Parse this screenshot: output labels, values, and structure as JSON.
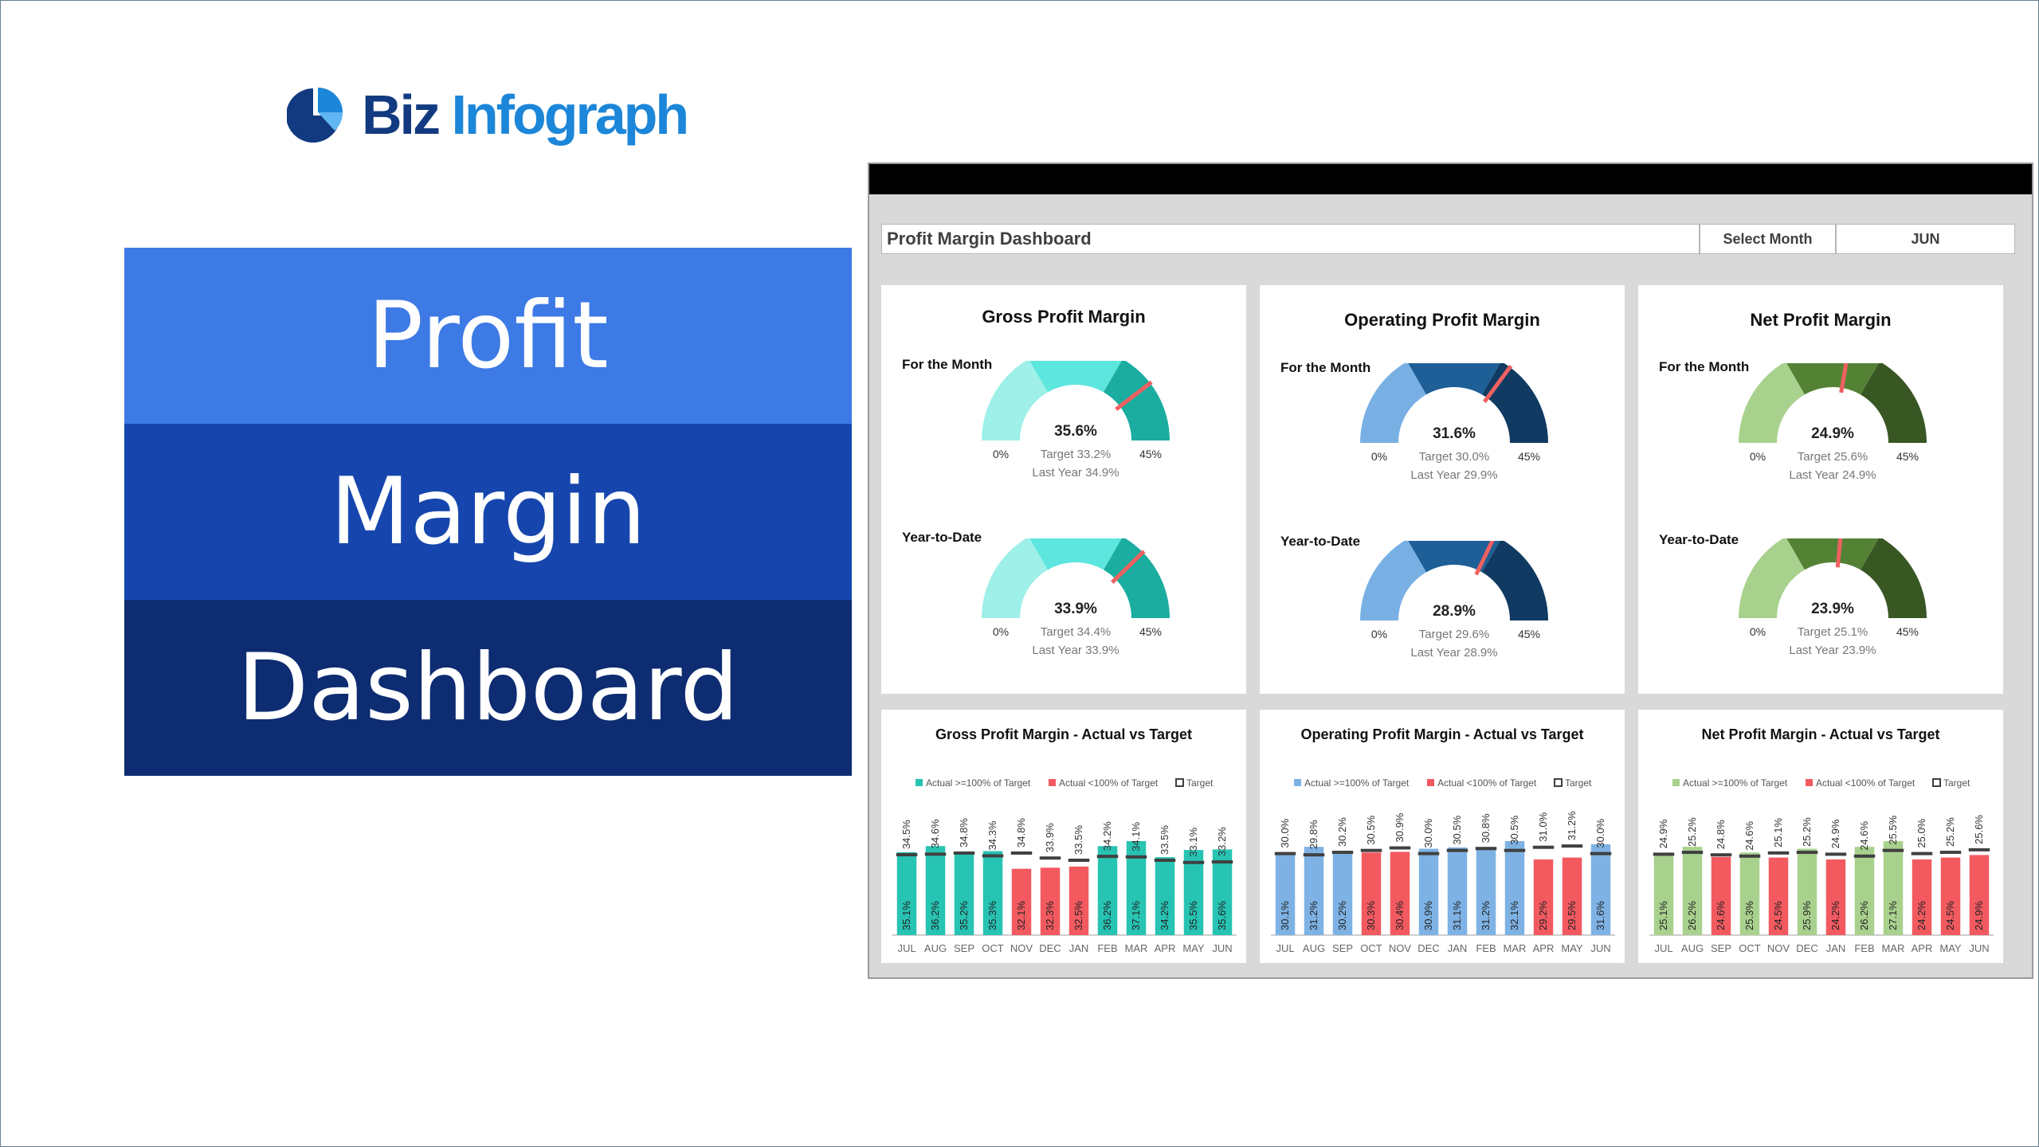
{
  "brand": {
    "name_part1": "Biz",
    "name_part2": "Infograph"
  },
  "title_bands": [
    "Profit",
    "Margin",
    "Dashboard"
  ],
  "header": {
    "title": "Profit Margin Dashboard",
    "select_label": "Select Month",
    "selected_month": "JUN"
  },
  "labels": {
    "for_the_month": "For the Month",
    "ytd": "Year-to-Date"
  },
  "gauges": [
    {
      "title": "Gross Profit Margin",
      "palette": [
        "#9ef0e8",
        "#5ce6de",
        "#1aada0"
      ],
      "min": "0%",
      "max": "45%",
      "month": {
        "value": 35.6,
        "display": "35.6%",
        "target": "Target 33.2%",
        "last_year": "Last Year 34.9%"
      },
      "ytd": {
        "value": 33.9,
        "display": "33.9%",
        "target": "Target 34.4%",
        "last_year": "Last Year 33.9%"
      }
    },
    {
      "title": "Operating Profit Margin",
      "palette": [
        "#78b0e4",
        "#1d5f96",
        "#103a61"
      ],
      "min": "0%",
      "max": "45%",
      "month": {
        "value": 31.6,
        "display": "31.6%",
        "target": "Target 30.0%",
        "last_year": "Last Year 29.9%"
      },
      "ytd": {
        "value": 28.9,
        "display": "28.9%",
        "target": "Target 29.6%",
        "last_year": "Last Year 28.9%"
      }
    },
    {
      "title": "Net Profit Margin",
      "palette": [
        "#a9d18e",
        "#548235",
        "#385723"
      ],
      "min": "0%",
      "max": "45%",
      "month": {
        "value": 24.9,
        "display": "24.9%",
        "target": "Target 25.6%",
        "last_year": "Last Year 24.9%"
      },
      "ytd": {
        "value": 23.9,
        "display": "23.9%",
        "target": "Target 25.1%",
        "last_year": "Last Year 23.9%"
      }
    }
  ],
  "colors": {
    "needle": "#f06060",
    "above_target_gross": "#27c3b3",
    "above_target_operating": "#7eb2e4",
    "above_target_net": "#a9d18e",
    "below_target": "#f25a60",
    "target_marker": "#404040",
    "band_light": "#3d7ae6",
    "band_mid": "#1646ad",
    "band_dark": "#0d2c71"
  },
  "chart_data": [
    {
      "type": "bar",
      "title": "Gross Profit Margin - Actual vs Target",
      "legend": [
        "Actual >=100% of Target",
        "Actual <100% of Target",
        "Target"
      ],
      "categories": [
        "JUL",
        "AUG",
        "SEP",
        "OCT",
        "NOV",
        "DEC",
        "JAN",
        "FEB",
        "MAR",
        "APR",
        "MAY",
        "JUN"
      ],
      "series": [
        {
          "name": "Actual",
          "values": [
            35.1,
            36.2,
            35.2,
            35.3,
            32.1,
            32.3,
            32.5,
            36.2,
            37.1,
            34.2,
            35.5,
            35.6
          ]
        },
        {
          "name": "Target",
          "values": [
            34.5,
            34.6,
            34.8,
            34.3,
            34.8,
            33.9,
            33.5,
            34.2,
            34.1,
            33.5,
            33.1,
            33.2
          ]
        }
      ]
    },
    {
      "type": "bar",
      "title": "Operating Profit Margin - Actual vs Target",
      "legend": [
        "Actual >=100% of Target",
        "Actual <100% of Target",
        "Target"
      ],
      "categories": [
        "JUL",
        "AUG",
        "SEP",
        "OCT",
        "NOV",
        "DEC",
        "JAN",
        "FEB",
        "MAR",
        "APR",
        "MAY",
        "JUN"
      ],
      "series": [
        {
          "name": "Actual",
          "values": [
            30.1,
            31.2,
            30.2,
            30.3,
            30.4,
            30.9,
            31.1,
            31.2,
            32.1,
            29.2,
            29.5,
            31.6
          ]
        },
        {
          "name": "Target",
          "values": [
            30.0,
            29.8,
            30.2,
            30.5,
            30.9,
            30.0,
            30.5,
            30.8,
            30.5,
            31.0,
            31.2,
            30.0
          ]
        }
      ]
    },
    {
      "type": "bar",
      "title": "Net Profit Margin - Actual vs Target",
      "legend": [
        "Actual >=100% of Target",
        "Actual <100% of Target",
        "Target"
      ],
      "categories": [
        "JUL",
        "AUG",
        "SEP",
        "OCT",
        "NOV",
        "DEC",
        "JAN",
        "FEB",
        "MAR",
        "APR",
        "MAY",
        "JUN"
      ],
      "series": [
        {
          "name": "Actual",
          "values": [
            25.1,
            26.2,
            24.6,
            25.3,
            24.5,
            25.9,
            24.2,
            26.2,
            27.1,
            24.2,
            24.5,
            24.9
          ]
        },
        {
          "name": "Target",
          "values": [
            24.9,
            25.2,
            24.8,
            24.6,
            25.1,
            25.2,
            24.9,
            24.6,
            25.5,
            25.0,
            25.2,
            25.6
          ]
        }
      ]
    }
  ]
}
